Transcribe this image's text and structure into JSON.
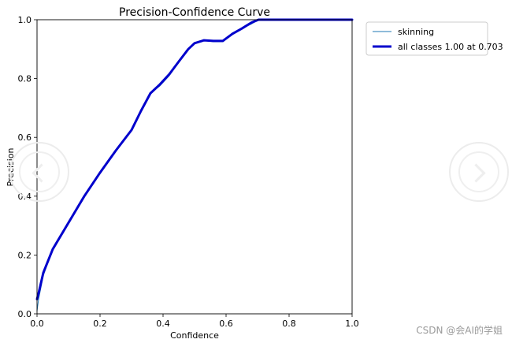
{
  "chart_data": {
    "type": "line",
    "title": "Precision-Confidence Curve",
    "xlabel": "Confidence",
    "ylabel": "Precision",
    "xlim": [
      0,
      1
    ],
    "ylim": [
      0,
      1
    ],
    "xticks": [
      "0.0",
      "0.2",
      "0.4",
      "0.6",
      "0.8",
      "1.0"
    ],
    "yticks": [
      "0.0",
      "0.2",
      "0.4",
      "0.6",
      "0.8",
      "1.0"
    ],
    "grid": false,
    "legend_position": "outside-top-right",
    "series": [
      {
        "name": "skinning",
        "color": "#1f77b4",
        "x": [
          0.0,
          0.005,
          0.02,
          0.05,
          0.1,
          0.15,
          0.2,
          0.25,
          0.3,
          0.33,
          0.36,
          0.39,
          0.42,
          0.45,
          0.48,
          0.5,
          0.53,
          0.56,
          0.59,
          0.62,
          0.65,
          0.68,
          0.703,
          0.75,
          0.8,
          0.9,
          1.0
        ],
        "y": [
          0.01,
          0.05,
          0.13,
          0.22,
          0.31,
          0.4,
          0.48,
          0.555,
          0.625,
          0.69,
          0.75,
          0.775,
          0.81,
          0.855,
          0.9,
          0.92,
          0.93,
          0.925,
          0.925,
          0.955,
          0.97,
          0.985,
          1.0,
          1.0,
          1.0,
          1.0,
          1.0
        ]
      },
      {
        "name": "all classes 1.00 at 0.703",
        "color": "#0000cc",
        "x": [
          0.0,
          0.005,
          0.02,
          0.05,
          0.1,
          0.15,
          0.2,
          0.25,
          0.3,
          0.33,
          0.36,
          0.39,
          0.42,
          0.45,
          0.48,
          0.5,
          0.53,
          0.56,
          0.59,
          0.62,
          0.65,
          0.68,
          0.703,
          0.75,
          0.8,
          0.9,
          1.0
        ],
        "y": [
          0.05,
          0.07,
          0.14,
          0.22,
          0.31,
          0.4,
          0.48,
          0.555,
          0.625,
          0.69,
          0.75,
          0.78,
          0.815,
          0.858,
          0.9,
          0.92,
          0.93,
          0.928,
          0.928,
          0.952,
          0.97,
          0.99,
          1.0,
          1.0,
          1.0,
          1.0,
          1.0
        ]
      }
    ]
  },
  "watermark": "CSDN @会AI的学姐",
  "nav": {
    "prev_icon": "chevron-left-icon",
    "next_icon": "chevron-right-icon"
  }
}
